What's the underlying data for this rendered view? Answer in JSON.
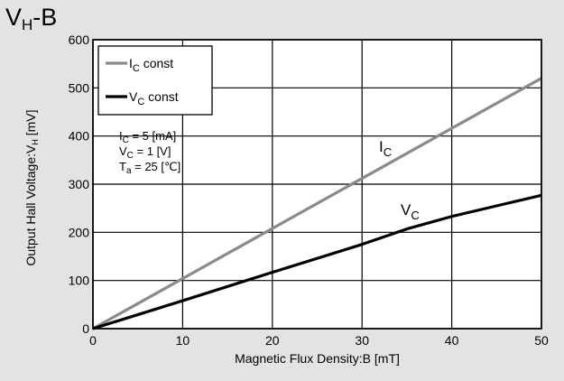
{
  "title": {
    "main": "V",
    "sub": "H",
    "suffix": "-B"
  },
  "chart_data": {
    "type": "line",
    "title": "VH-B",
    "xlabel": "Magnetic Flux Density:B [mT]",
    "ylabel_main": "Output Hall Voltage:V",
    "ylabel_sub": "H",
    "ylabel_unit": " [mV]",
    "xlim": [
      0,
      50
    ],
    "ylim": [
      0,
      600
    ],
    "xticks": [
      0,
      10,
      20,
      30,
      40,
      50
    ],
    "yticks": [
      0,
      100,
      200,
      300,
      400,
      500,
      600
    ],
    "grid": true,
    "legend_position": "top-left",
    "series": [
      {
        "name_main": "I",
        "name_sub": "C",
        "name_suffix": " const",
        "label_main": "I",
        "label_sub": "C",
        "color": "#8a8a8a",
        "x": [
          0,
          50
        ],
        "y": [
          0,
          520
        ]
      },
      {
        "name_main": "V",
        "name_sub": "C",
        "name_suffix": " const",
        "label_main": "V",
        "label_sub": "C",
        "color": "#000000",
        "x": [
          0,
          10,
          20,
          30,
          35,
          40,
          45,
          50
        ],
        "y": [
          0,
          58,
          117,
          175,
          207,
          233,
          255,
          277
        ]
      }
    ],
    "annotations": [
      {
        "main": "I",
        "sub": "C",
        "rest": " = 5  [mA]"
      },
      {
        "main": "V",
        "sub": "C",
        "rest": " = 1  [V]"
      },
      {
        "main": "T",
        "sub": "a",
        "rest": " = 25 [℃]"
      }
    ]
  }
}
